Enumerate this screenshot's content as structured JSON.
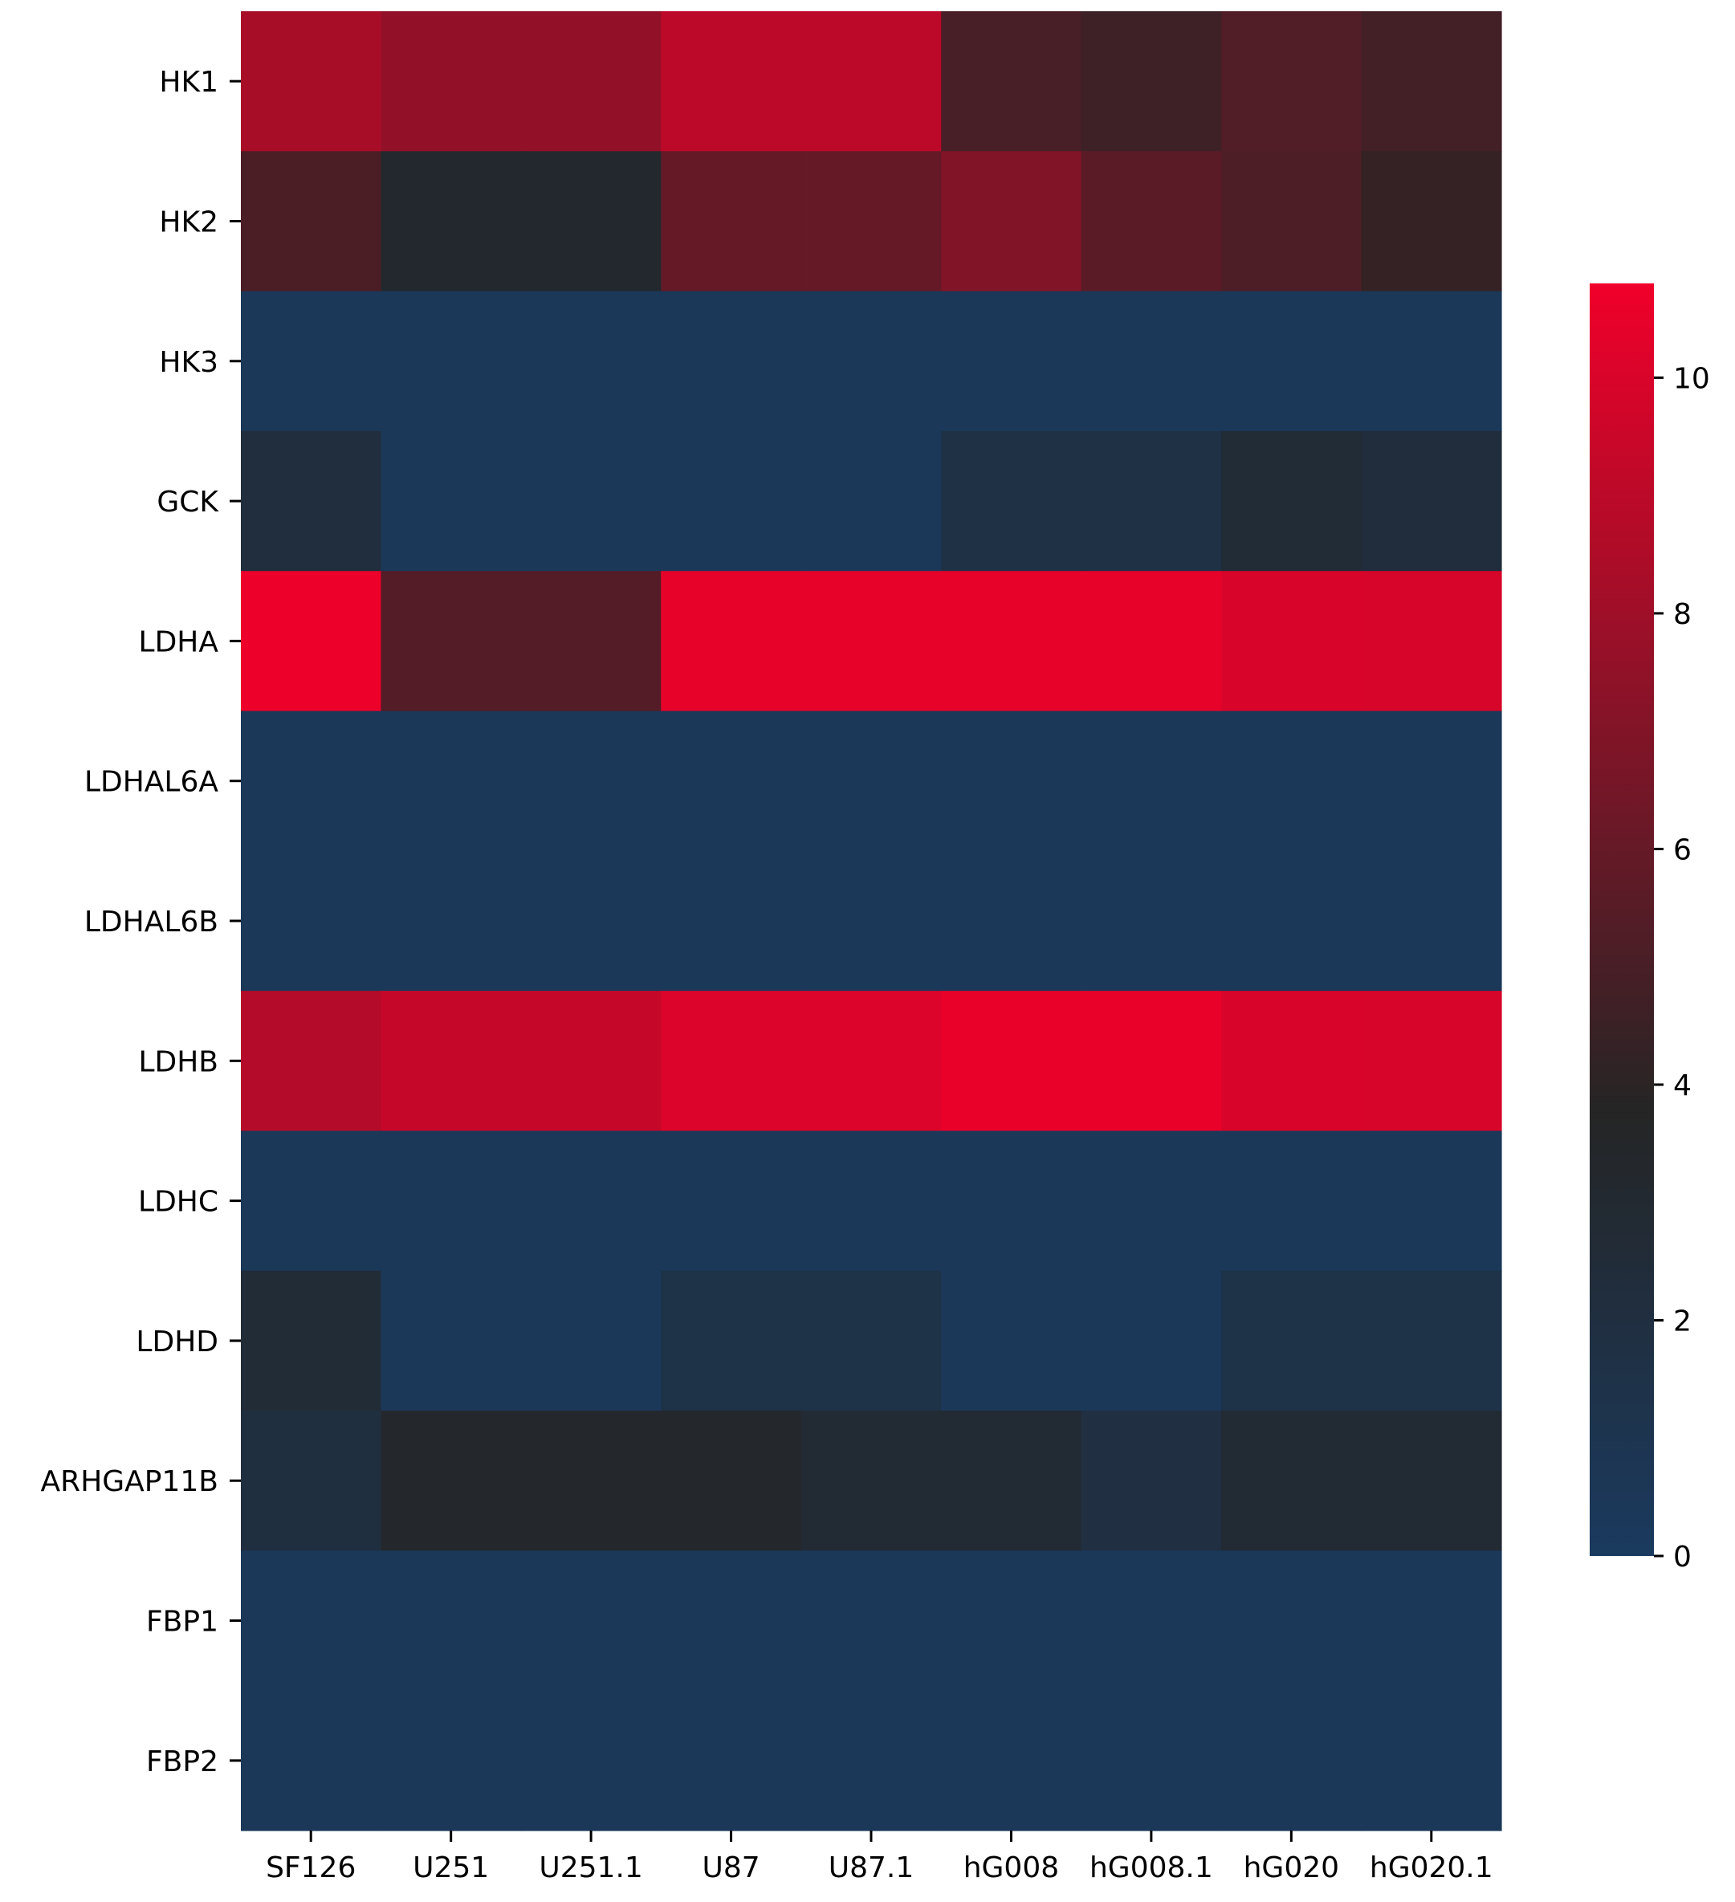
{
  "chart_data": {
    "type": "heatmap",
    "title": "",
    "xlabel": "",
    "ylabel": "",
    "columns": [
      "SF126",
      "U251",
      "U251.1",
      "U87",
      "U87.1",
      "hG008",
      "hG008.1",
      "hG020",
      "hG020.1"
    ],
    "rows": [
      "HK1",
      "HK2",
      "HK3",
      "GCK",
      "LDHA",
      "LDHAL6A",
      "LDHAL6B",
      "LDHB",
      "LDHC",
      "LDHD",
      "ARHGAP11B",
      "FBP1",
      "FBP2"
    ],
    "values": [
      [
        8.3,
        7.6,
        7.6,
        9.0,
        9.0,
        5.0,
        4.6,
        5.3,
        4.8
      ],
      [
        5.1,
        3.2,
        3.2,
        6.0,
        6.0,
        7.0,
        5.6,
        5.2,
        4.3
      ],
      [
        0.4,
        0.4,
        0.4,
        0.4,
        0.4,
        0.4,
        0.4,
        0.4,
        0.4
      ],
      [
        2.2,
        0.4,
        0.4,
        0.4,
        0.4,
        1.7,
        1.7,
        2.6,
        2.3
      ],
      [
        10.7,
        5.4,
        5.4,
        10.5,
        10.5,
        10.5,
        10.5,
        10.0,
        9.9
      ],
      [
        0.4,
        0.4,
        0.4,
        0.4,
        0.4,
        0.4,
        0.4,
        0.4,
        0.4
      ],
      [
        0.4,
        0.4,
        0.4,
        0.4,
        0.4,
        0.4,
        0.4,
        0.4,
        0.4
      ],
      [
        8.7,
        9.3,
        9.3,
        10.1,
        10.1,
        10.6,
        10.6,
        10.0,
        9.9
      ],
      [
        0.4,
        0.4,
        0.4,
        0.4,
        0.4,
        0.4,
        0.4,
        0.4,
        0.4
      ],
      [
        2.6,
        0.4,
        0.4,
        1.5,
        1.5,
        0.4,
        0.4,
        1.5,
        1.5
      ],
      [
        2.0,
        3.3,
        3.3,
        3.3,
        2.8,
        2.8,
        1.9,
        2.8,
        2.8
      ],
      [
        0.4,
        0.4,
        0.4,
        0.4,
        0.4,
        0.4,
        0.4,
        0.4,
        0.4
      ],
      [
        0.4,
        0.4,
        0.4,
        0.4,
        0.4,
        0.4,
        0.4,
        0.4,
        0.4
      ]
    ],
    "colorbar": {
      "vmin": 0,
      "vmax": 10.8,
      "ticks": [
        0,
        2,
        4,
        6,
        8,
        10
      ],
      "colors": [
        "#1a3a5f",
        "#252525",
        "#f0002a"
      ]
    },
    "grid": false
  }
}
